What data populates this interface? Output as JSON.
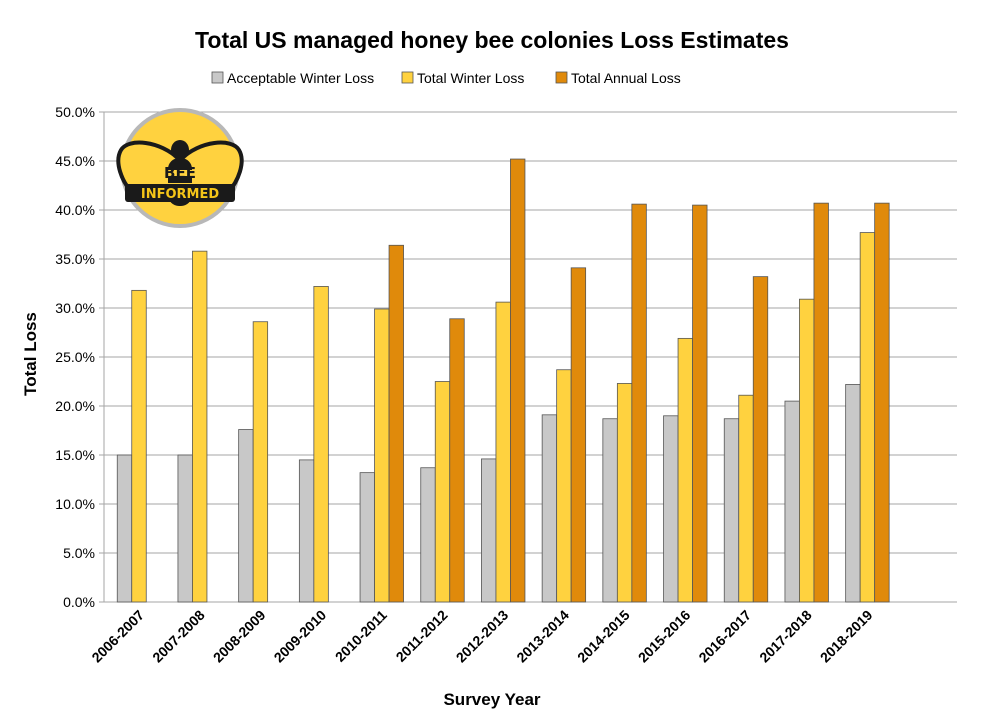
{
  "chart_data": {
    "type": "bar",
    "title": "Total US managed honey bee colonies Loss Estimates",
    "xlabel": "Survey Year",
    "ylabel": "Total Loss",
    "ylim": [
      0,
      50
    ],
    "y_tick_step": 5,
    "y_tick_format": "percent_1dp",
    "grid": true,
    "legend_position": "top",
    "categories": [
      "2006-2007",
      "2007-2008",
      "2008-2009",
      "2009-2010",
      "2010-2011",
      "2011-2012",
      "2012-2013",
      "2013-2014",
      "2014-2015",
      "2015-2016",
      "2016-2017",
      "2017-2018",
      "2018-2019"
    ],
    "series": [
      {
        "name": "Acceptable Winter Loss",
        "color": "#c8c8c8",
        "values": [
          15.0,
          15.0,
          17.6,
          14.5,
          13.2,
          13.7,
          14.6,
          19.1,
          18.7,
          19.0,
          18.7,
          20.5,
          22.2
        ]
      },
      {
        "name": "Total Winter Loss",
        "color": "#ffd23f",
        "values": [
          31.8,
          35.8,
          28.6,
          32.2,
          29.9,
          22.5,
          30.6,
          23.7,
          22.3,
          26.9,
          21.1,
          30.9,
          37.7
        ]
      },
      {
        "name": "Total Annual Loss",
        "color": "#e08a0b",
        "values": [
          null,
          null,
          null,
          null,
          36.4,
          28.9,
          45.2,
          34.1,
          40.6,
          40.5,
          33.2,
          40.7,
          40.7
        ]
      }
    ]
  },
  "logo": {
    "top_text": "BEE",
    "bottom_text": "INFORMED",
    "icon": "bee-icon"
  }
}
